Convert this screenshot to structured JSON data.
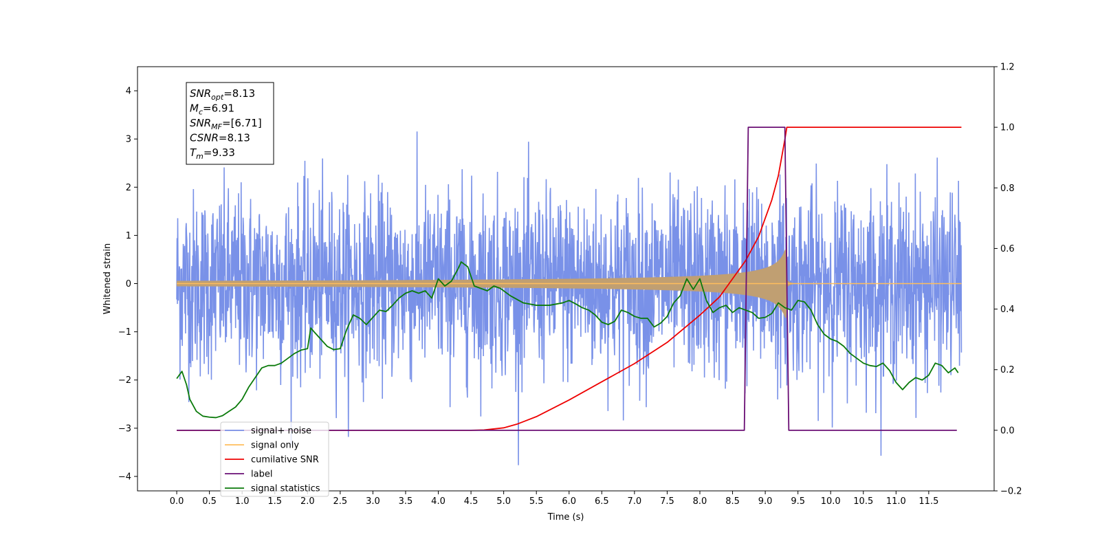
{
  "chart_data": {
    "type": "line",
    "title": "",
    "xlabel": "Time (s)",
    "ylabel": "Whitened strain",
    "y2label": "",
    "xlim": [
      -0.6,
      12.5
    ],
    "ylim": [
      -4.3,
      4.5
    ],
    "y2lim": [
      -0.2,
      1.2
    ],
    "x_ticks": [
      0.0,
      0.5,
      1.0,
      1.5,
      2.0,
      2.5,
      3.0,
      3.5,
      4.0,
      4.5,
      5.0,
      5.5,
      6.0,
      6.5,
      7.0,
      7.5,
      8.0,
      8.5,
      9.0,
      9.5,
      10.0,
      10.5,
      11.0,
      11.5
    ],
    "x_tick_labels": [
      "0.0",
      "0.5",
      "1.0",
      "1.5",
      "2.0",
      "2.5",
      "3.0",
      "3.5",
      "4.0",
      "4.5",
      "5.0",
      "5.5",
      "6.0",
      "6.5",
      "7.0",
      "7.5",
      "8.0",
      "8.5",
      "9.0",
      "9.5",
      "10.0",
      "10.5",
      "11.0",
      "11.5"
    ],
    "y_ticks": [
      -4,
      -3,
      -2,
      -1,
      0,
      1,
      2,
      3,
      4
    ],
    "y_tick_labels": [
      "−4",
      "−3",
      "−2",
      "−1",
      "0",
      "1",
      "2",
      "3",
      "4"
    ],
    "y2_ticks": [
      -0.2,
      0.0,
      0.2,
      0.4,
      0.6,
      0.8,
      1.0,
      1.2
    ],
    "y2_tick_labels": [
      "−0.2",
      "0.0",
      "0.2",
      "0.4",
      "0.6",
      "0.8",
      "1.0",
      "1.2"
    ],
    "grid": false,
    "legend_position": "lower-left",
    "annotation": {
      "lines": [
        {
          "main": "SNR",
          "sub": "opt",
          "rest": "=8.13"
        },
        {
          "main": "M",
          "sub": "c",
          "rest": "=6.91"
        },
        {
          "main": "SNR",
          "sub": "MF",
          "rest": "=[6.71]"
        },
        {
          "main": "CSNR",
          "sub": "",
          "rest": "=8.13"
        },
        {
          "main": "T",
          "sub": "m",
          "rest": "=9.33"
        }
      ]
    },
    "series": [
      {
        "name": "signal+ noise",
        "axis": "left",
        "color": "#7991e8",
        "noise": {
          "x_start": 0.0,
          "x_end": 12.0,
          "sigma": 1.0,
          "samples": 2400
        },
        "envelope_of_signal": true
      },
      {
        "name": "signal only",
        "axis": "left",
        "color": "#ffbe5c",
        "fill_color": "#c09f72",
        "chirp": {
          "x_start": 0.0,
          "x_merger": 9.33,
          "x_end": 12.0,
          "amp_far": 0.04,
          "amp_8": 0.2,
          "amp_9": 0.3,
          "amp_peak": 0.72,
          "ringdown_amp": 0.08
        }
      },
      {
        "name": "cumilative SNR",
        "axis": "right",
        "color": "#ee0000",
        "x": [
          0.0,
          4.5,
          4.7,
          5.0,
          5.2,
          5.5,
          6.0,
          6.5,
          7.0,
          7.5,
          8.0,
          8.3,
          8.5,
          8.7,
          8.9,
          9.0,
          9.1,
          9.2,
          9.25,
          9.3,
          9.33,
          9.34,
          12.0
        ],
        "y": [
          0.0,
          0.0,
          0.001,
          0.008,
          0.02,
          0.045,
          0.1,
          0.16,
          0.22,
          0.29,
          0.38,
          0.44,
          0.5,
          0.56,
          0.64,
          0.7,
          0.76,
          0.84,
          0.9,
          0.96,
          1.0,
          1.0,
          1.0
        ]
      },
      {
        "name": "label",
        "axis": "right",
        "color": "#6a0e74",
        "x": [
          0.0,
          8.68,
          8.74,
          9.3,
          9.36,
          11.93
        ],
        "y": [
          0.0,
          0.0,
          1.0,
          1.0,
          0.0,
          0.0
        ]
      },
      {
        "name": "signal statistics",
        "axis": "left",
        "color": "#0a7a0a",
        "x": [
          0.0,
          0.08,
          0.15,
          0.2,
          0.3,
          0.4,
          0.5,
          0.6,
          0.7,
          0.8,
          0.9,
          1.0,
          1.1,
          1.2,
          1.3,
          1.4,
          1.5,
          1.6,
          1.7,
          1.8,
          1.9,
          2.0,
          2.05,
          2.1,
          2.2,
          2.3,
          2.4,
          2.5,
          2.6,
          2.7,
          2.8,
          2.9,
          3.0,
          3.1,
          3.2,
          3.3,
          3.4,
          3.5,
          3.6,
          3.7,
          3.8,
          3.9,
          4.0,
          4.1,
          4.2,
          4.3,
          4.35,
          4.45,
          4.55,
          4.65,
          4.75,
          4.85,
          4.95,
          5.1,
          5.3,
          5.5,
          5.7,
          5.9,
          6.0,
          6.1,
          6.2,
          6.3,
          6.4,
          6.5,
          6.6,
          6.7,
          6.8,
          6.9,
          7.0,
          7.1,
          7.2,
          7.3,
          7.4,
          7.5,
          7.6,
          7.7,
          7.8,
          7.9,
          8.0,
          8.1,
          8.2,
          8.3,
          8.4,
          8.5,
          8.6,
          8.7,
          8.8,
          8.9,
          9.0,
          9.1,
          9.2,
          9.3,
          9.4,
          9.5,
          9.6,
          9.7,
          9.8,
          9.9,
          10.0,
          10.1,
          10.2,
          10.3,
          10.4,
          10.5,
          10.6,
          10.7,
          10.8,
          10.9,
          11.0,
          11.1,
          11.2,
          11.3,
          11.4,
          11.5,
          11.6,
          11.7,
          11.8,
          11.9,
          11.95
        ],
        "y": [
          -1.97,
          -1.82,
          -2.1,
          -2.4,
          -2.65,
          -2.75,
          -2.77,
          -2.78,
          -2.74,
          -2.65,
          -2.56,
          -2.4,
          -2.15,
          -1.95,
          -1.75,
          -1.7,
          -1.7,
          -1.65,
          -1.55,
          -1.45,
          -1.38,
          -1.35,
          -0.92,
          -1.0,
          -1.15,
          -1.3,
          -1.37,
          -1.35,
          -0.95,
          -0.65,
          -0.72,
          -0.85,
          -0.7,
          -0.55,
          -0.58,
          -0.45,
          -0.3,
          -0.2,
          -0.15,
          -0.2,
          -0.15,
          -0.3,
          0.1,
          -0.05,
          0.05,
          0.3,
          0.45,
          0.35,
          -0.05,
          -0.1,
          -0.15,
          -0.05,
          -0.1,
          -0.25,
          -0.4,
          -0.45,
          -0.45,
          -0.4,
          -0.35,
          -0.42,
          -0.5,
          -0.55,
          -0.65,
          -0.8,
          -0.85,
          -0.78,
          -0.55,
          -0.6,
          -0.68,
          -0.72,
          -0.72,
          -0.9,
          -0.82,
          -0.68,
          -0.4,
          -0.25,
          0.1,
          -0.12,
          0.1,
          -0.35,
          -0.6,
          -0.5,
          -0.45,
          -0.6,
          -0.5,
          -0.55,
          -0.6,
          -0.72,
          -0.7,
          -0.62,
          -0.4,
          -0.5,
          -0.55,
          -0.35,
          -0.38,
          -0.55,
          -0.85,
          -1.05,
          -1.15,
          -1.2,
          -1.3,
          -1.45,
          -1.55,
          -1.65,
          -1.7,
          -1.72,
          -1.65,
          -1.8,
          -2.05,
          -2.2,
          -2.05,
          -1.95,
          -2.0,
          -1.9,
          -1.65,
          -1.7,
          -1.85,
          -1.75,
          -1.85
        ]
      }
    ]
  }
}
